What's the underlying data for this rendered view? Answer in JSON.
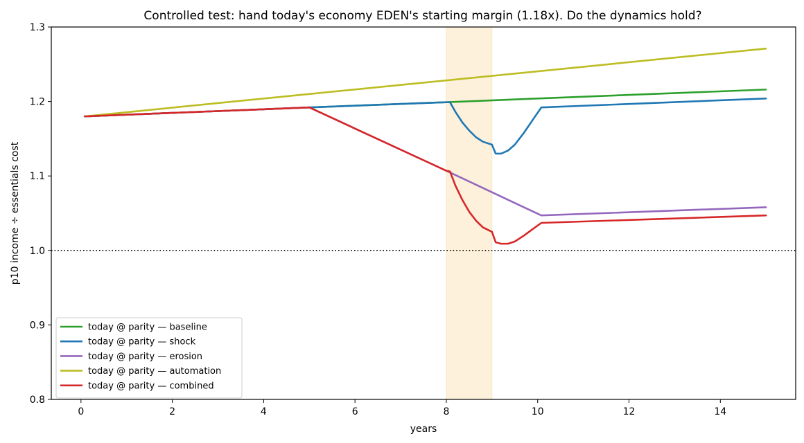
{
  "chart_data": {
    "type": "line",
    "title": "Controlled test: hand today's economy EDEN's starting margin (1.18x). Do the dynamics hold?",
    "xlabel": "years",
    "ylabel": "p10 income ÷ essentials cost",
    "xlim": [
      -0.65,
      15.65
    ],
    "ylim": [
      0.8,
      1.3
    ],
    "xticks": [
      0,
      2,
      4,
      6,
      8,
      10,
      12,
      14
    ],
    "yticks": [
      0.8,
      0.9,
      1.0,
      1.1,
      1.2,
      1.3
    ],
    "ytick_labels": [
      "0.8",
      "0.9",
      "1.0",
      "1.1",
      "1.2",
      "1.3"
    ],
    "grid": false,
    "legend_position": "lower-left",
    "shaded_region": {
      "x": [
        8,
        9
      ],
      "color": "#fdf1dc"
    },
    "reference_line": {
      "y": 1.0,
      "style": "dotted",
      "color": "#000000"
    },
    "series": [
      {
        "name": "today @ parity — baseline",
        "color": "#2ca02c",
        "x": [
          0.08,
          5.0,
          8.0,
          10.0,
          15.0
        ],
        "y": [
          1.18,
          1.192,
          1.199,
          1.204,
          1.216
        ]
      },
      {
        "name": "today @ parity — shock",
        "color": "#1f77b4",
        "x": [
          0.08,
          5.0,
          8.0,
          8.08,
          8.2,
          8.35,
          8.5,
          8.65,
          8.8,
          9.0,
          9.08,
          9.2,
          9.35,
          9.5,
          9.7,
          9.9,
          10.08,
          15.0
        ],
        "y": [
          1.18,
          1.192,
          1.199,
          1.199,
          1.186,
          1.172,
          1.161,
          1.152,
          1.146,
          1.142,
          1.13,
          1.13,
          1.134,
          1.142,
          1.158,
          1.176,
          1.192,
          1.204
        ]
      },
      {
        "name": "today @ parity — erosion",
        "color": "#9467bd",
        "x": [
          0.08,
          5.0,
          8.0,
          10.08,
          15.0
        ],
        "y": [
          1.18,
          1.192,
          1.107,
          1.047,
          1.058
        ]
      },
      {
        "name": "today @ parity — automation",
        "color": "#bcbd22",
        "x": [
          0.08,
          15.0
        ],
        "y": [
          1.18,
          1.271
        ]
      },
      {
        "name": "today @ parity — combined",
        "color": "#d62728",
        "x": [
          0.08,
          5.0,
          8.0,
          8.08,
          8.2,
          8.35,
          8.5,
          8.65,
          8.8,
          9.0,
          9.08,
          9.2,
          9.35,
          9.5,
          9.7,
          9.9,
          10.08,
          15.0
        ],
        "y": [
          1.18,
          1.192,
          1.107,
          1.106,
          1.087,
          1.068,
          1.052,
          1.04,
          1.031,
          1.025,
          1.011,
          1.009,
          1.009,
          1.012,
          1.02,
          1.029,
          1.037,
          1.047
        ]
      }
    ]
  }
}
